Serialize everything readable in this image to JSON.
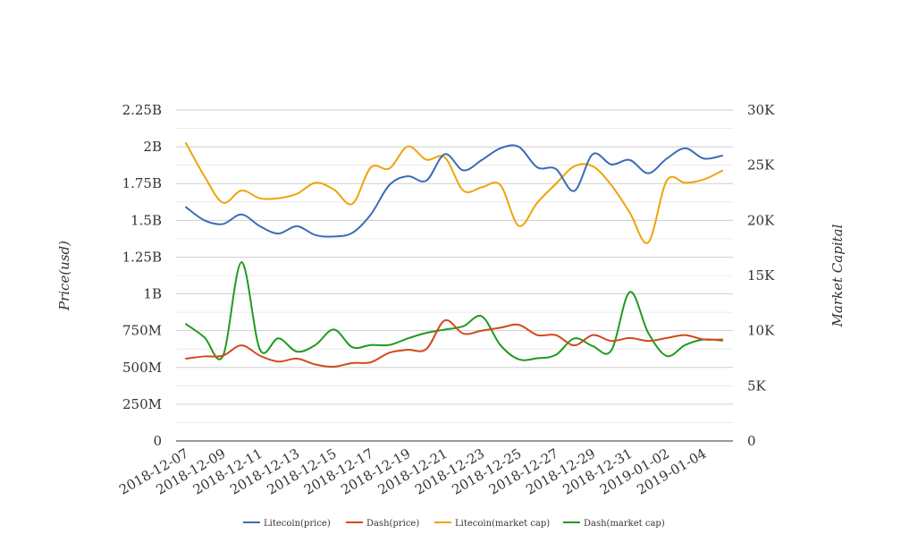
{
  "chart_data": {
    "type": "line",
    "title": "",
    "xlabel": "",
    "y_left_label": "Price(usd)",
    "y_right_label": "Market Capital",
    "y_left_ticks": [
      "0",
      "250M",
      "500M",
      "750M",
      "1B",
      "1.25B",
      "1.5B",
      "1.75B",
      "2B",
      "2.25B"
    ],
    "y_left_range": [
      0,
      2250000000
    ],
    "y_right_ticks": [
      "0",
      "5K",
      "10K",
      "15K",
      "20K",
      "25K",
      "30K"
    ],
    "y_right_range": [
      0,
      30000
    ],
    "x_tick_labels": [
      "2018-12-07",
      "2018-12-09",
      "2018-12-11",
      "2018-12-13",
      "2018-12-15",
      "2018-12-17",
      "2018-12-19",
      "2018-12-21",
      "2018-12-23",
      "2018-12-25",
      "2018-12-27",
      "2018-12-29",
      "2018-12-31",
      "2019-01-02",
      "2019-01-04"
    ],
    "x": [
      "2018-12-07",
      "2018-12-08",
      "2018-12-09",
      "2018-12-10",
      "2018-12-11",
      "2018-12-12",
      "2018-12-13",
      "2018-12-14",
      "2018-12-15",
      "2018-12-16",
      "2018-12-17",
      "2018-12-18",
      "2018-12-19",
      "2018-12-20",
      "2018-12-21",
      "2018-12-22",
      "2018-12-23",
      "2018-12-24",
      "2018-12-25",
      "2018-12-26",
      "2018-12-27",
      "2018-12-28",
      "2018-12-29",
      "2018-12-30",
      "2018-12-31",
      "2019-01-01",
      "2019-01-02",
      "2019-01-03",
      "2019-01-04",
      "2019-01-05"
    ],
    "grid": true,
    "legend_position": "bottom",
    "series": [
      {
        "name": "Litecoin(price)",
        "axis": "left",
        "color": "#3b6cb7",
        "values": [
          1590000000,
          1500000000,
          1475000000,
          1540000000,
          1460000000,
          1410000000,
          1460000000,
          1400000000,
          1390000000,
          1415000000,
          1540000000,
          1740000000,
          1800000000,
          1770000000,
          1950000000,
          1840000000,
          1910000000,
          1990000000,
          2000000000,
          1860000000,
          1850000000,
          1700000000,
          1950000000,
          1880000000,
          1910000000,
          1820000000,
          1920000000,
          1990000000,
          1920000000,
          1940000000
        ]
      },
      {
        "name": "Dash(price)",
        "axis": "left",
        "color": "#d2491e",
        "values": [
          560000000,
          575000000,
          580000000,
          650000000,
          580000000,
          540000000,
          560000000,
          520000000,
          505000000,
          530000000,
          535000000,
          600000000,
          620000000,
          625000000,
          820000000,
          730000000,
          750000000,
          770000000,
          790000000,
          720000000,
          720000000,
          650000000,
          720000000,
          680000000,
          700000000,
          680000000,
          700000000,
          720000000,
          690000000,
          690000000
        ]
      },
      {
        "name": "Litecoin(market cap)",
        "axis": "right",
        "color": "#f0a30a",
        "values": [
          27000,
          24000,
          21600,
          22700,
          22000,
          22000,
          22400,
          23400,
          22800,
          21500,
          24800,
          24700,
          26700,
          25500,
          25700,
          22700,
          23000,
          23200,
          19500,
          21600,
          23300,
          24900,
          24900,
          23200,
          20700,
          18000,
          23600,
          23400,
          23700,
          24500
        ]
      },
      {
        "name": "Dash(market cap)",
        "axis": "right",
        "color": "#1f9a1f",
        "values": [
          10600,
          9400,
          7700,
          16200,
          8300,
          9300,
          8100,
          8700,
          10100,
          8500,
          8700,
          8700,
          9300,
          9800,
          10100,
          10400,
          11300,
          8700,
          7400,
          7500,
          7800,
          9300,
          8600,
          8200,
          13500,
          9800,
          7700,
          8700,
          9200,
          9100
        ]
      }
    ]
  }
}
